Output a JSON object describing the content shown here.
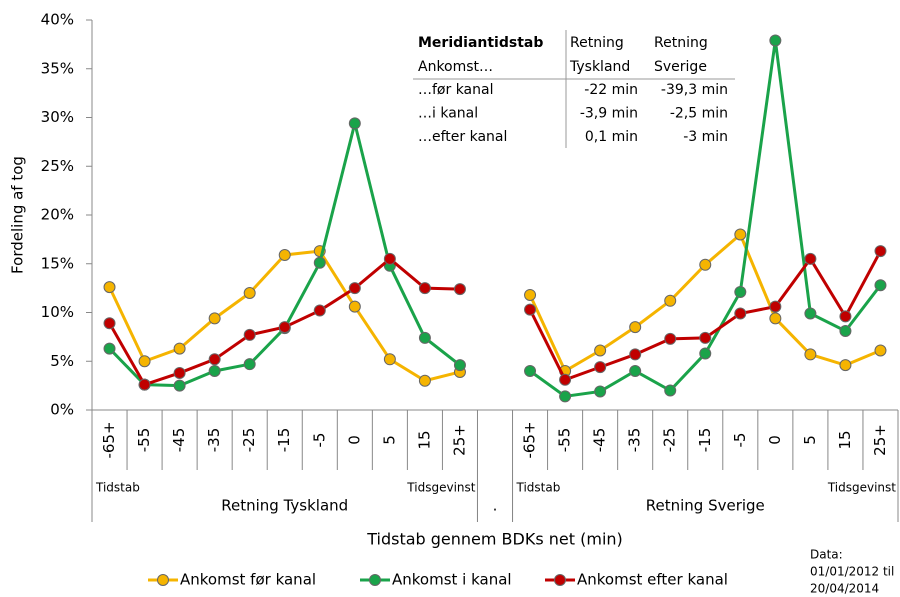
{
  "chart_data": {
    "type": "line",
    "y_label": "Fordeling af tog",
    "x_label": "Tidstab gennem BDKs net (min)",
    "categories": [
      "-65+",
      "-55",
      "-45",
      "-35",
      "-25",
      "-15",
      "-5",
      "0",
      "5",
      "15",
      "25+",
      null,
      "-65+",
      "-55",
      "-45",
      "-35",
      "-25",
      "-15",
      "-5",
      "0",
      "5",
      "15",
      "25+"
    ],
    "groups": [
      {
        "name": "Retning Tyskland",
        "notes": [
          "Tidstab",
          "Tidsgevinst"
        ]
      },
      {
        "name": "."
      },
      {
        "name": "Retning Sverige",
        "notes": [
          "Tidstab",
          "Tidsgevinst"
        ]
      }
    ],
    "series": [
      {
        "name": "Ankomst før kanal",
        "color": "#f5b400",
        "values": [
          12.6,
          5.0,
          6.3,
          9.4,
          12.0,
          15.9,
          16.3,
          10.6,
          5.2,
          3.0,
          3.9,
          null,
          11.8,
          4.0,
          6.1,
          8.5,
          11.2,
          14.9,
          18.0,
          9.4,
          5.7,
          4.6,
          6.1
        ]
      },
      {
        "name": "Ankomst i kanal",
        "color": "#1aa34a",
        "values": [
          6.3,
          2.6,
          2.5,
          4.0,
          4.7,
          8.4,
          15.1,
          29.4,
          14.8,
          7.4,
          4.6,
          null,
          4.0,
          1.4,
          1.9,
          4.0,
          2.0,
          5.8,
          12.1,
          37.9,
          9.9,
          8.1,
          12.8
        ]
      },
      {
        "name": "Ankomst efter kanal",
        "color": "#c00000",
        "values": [
          8.9,
          2.6,
          3.8,
          5.2,
          7.7,
          8.5,
          10.2,
          12.5,
          15.5,
          12.5,
          12.4,
          null,
          10.3,
          3.1,
          4.4,
          5.7,
          7.3,
          7.4,
          9.9,
          10.6,
          15.5,
          9.6,
          16.3
        ]
      }
    ],
    "ylim": [
      0,
      40
    ],
    "yticks": [
      {
        "value": 0,
        "label": "0%"
      },
      {
        "value": 5,
        "label": "5%"
      },
      {
        "value": 10,
        "label": "10%"
      },
      {
        "value": 15,
        "label": "15%"
      },
      {
        "value": 20,
        "label": "20%"
      },
      {
        "value": 25,
        "label": "25%"
      },
      {
        "value": 30,
        "label": "30%"
      },
      {
        "value": 35,
        "label": "35%"
      },
      {
        "value": 40,
        "label": "40%"
      }
    ],
    "grid": false,
    "legend": "bottom",
    "table": {
      "header": [
        [
          "Meridiantidstab",
          "Retning",
          "Retning"
        ],
        [
          "Ankomst…",
          "Tyskland",
          "Sverige"
        ]
      ],
      "rows": [
        [
          "…før kanal",
          "-22 min",
          "-39,3 min"
        ],
        [
          "…i kanal",
          "-3,9 min",
          "-2,5 min"
        ],
        [
          "…efter kanal",
          "0,1 min",
          "-3 min"
        ]
      ]
    },
    "note": [
      "Data:",
      "01/01/2012  til",
      "20/04/2014"
    ]
  }
}
